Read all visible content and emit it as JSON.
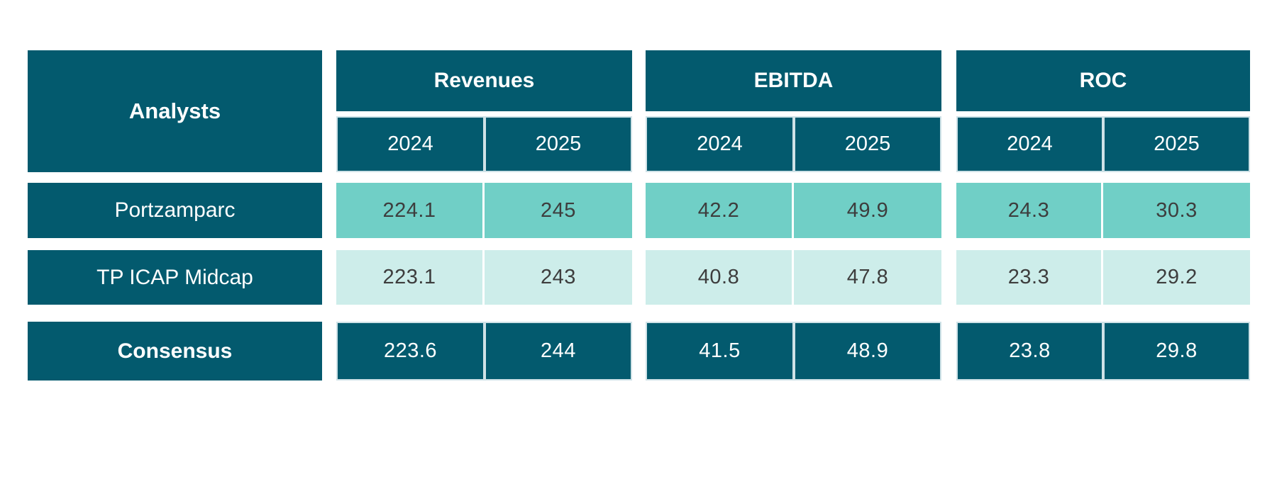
{
  "table": {
    "corner_label": "Analysts",
    "groups": [
      {
        "label": "Revenues",
        "year1": "2024",
        "year2": "2025"
      },
      {
        "label": "EBITDA",
        "year1": "2024",
        "year2": "2025"
      },
      {
        "label": "ROC",
        "year1": "2024",
        "year2": "2025"
      }
    ],
    "rows": [
      {
        "name": "Portzamparc",
        "values": [
          "224.1",
          "245",
          "42.2",
          "49.9",
          "24.3",
          "30.3"
        ]
      },
      {
        "name": "TP ICAP Midcap",
        "values": [
          "223.1",
          "243",
          "40.8",
          "47.8",
          "23.3",
          "29.2"
        ]
      },
      {
        "name": "Consensus",
        "values": [
          "223.6",
          "244",
          "41.5",
          "48.9",
          "23.8",
          "29.8"
        ]
      }
    ]
  },
  "colors": {
    "dark_teal": "#035a6e",
    "medium_teal": "#70cfc6",
    "light_teal": "#cdedea",
    "value_text": "#3d3d3d",
    "pale_border": "#cfe2e7",
    "background": "#ffffff"
  },
  "chart_data": {
    "type": "table",
    "title": "Analyst estimates consensus table",
    "columns": [
      "Analysts",
      "Revenues 2024",
      "Revenues 2025",
      "EBITDA 2024",
      "EBITDA 2025",
      "ROC 2024",
      "ROC 2025"
    ],
    "rows": [
      [
        "Portzamparc",
        224.1,
        245,
        42.2,
        49.9,
        24.3,
        30.3
      ],
      [
        "TP ICAP Midcap",
        223.1,
        243,
        40.8,
        47.8,
        23.3,
        29.2
      ],
      [
        "Consensus",
        223.6,
        244,
        41.5,
        48.9,
        23.8,
        29.8
      ]
    ]
  }
}
